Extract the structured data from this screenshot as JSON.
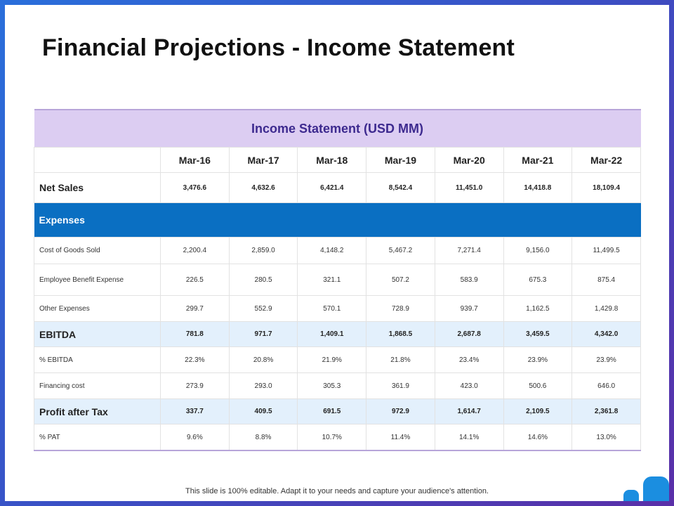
{
  "title": "Financial Projections - Income Statement",
  "table": {
    "caption": "Income Statement (USD MM)",
    "columns": [
      "Mar-16",
      "Mar-17",
      "Mar-18",
      "Mar-19",
      "Mar-20",
      "Mar-21",
      "Mar-22"
    ],
    "net_sales": {
      "label": "Net Sales",
      "values": [
        "3,476.6",
        "4,632.6",
        "6,421.4",
        "8,542.4",
        "11,451.0",
        "14,418.8",
        "18,109.4"
      ]
    },
    "expenses_label": "Expenses",
    "cogs": {
      "label": "Cost of Goods Sold",
      "values": [
        "2,200.4",
        "2,859.0",
        "4,148.2",
        "5,467.2",
        "7,271.4",
        "9,156.0",
        "11,499.5"
      ]
    },
    "employee": {
      "label": "Employee Benefit Expense",
      "values": [
        "226.5",
        "280.5",
        "321.1",
        "507.2",
        "583.9",
        "675.3",
        "875.4"
      ]
    },
    "other": {
      "label": "Other Expenses",
      "values": [
        "299.7",
        "552.9",
        "570.1",
        "728.9",
        "939.7",
        "1,162.5",
        "1,429.8"
      ]
    },
    "ebitda": {
      "label": "EBITDA",
      "values": [
        "781.8",
        "971.7",
        "1,409.1",
        "1,868.5",
        "2,687.8",
        "3,459.5",
        "4,342.0"
      ]
    },
    "pct_ebitda": {
      "label": "% EBITDA",
      "values": [
        "22.3%",
        "20.8%",
        "21.9%",
        "21.8%",
        "23.4%",
        "23.9%",
        "23.9%"
      ]
    },
    "financing": {
      "label": "Financing cost",
      "values": [
        "273.9",
        "293.0",
        "305.3",
        "361.9",
        "423.0",
        "500.6",
        "646.0"
      ]
    },
    "pat": {
      "label": "Profit after Tax",
      "values": [
        "337.7",
        "409.5",
        "691.5",
        "972.9",
        "1,614.7",
        "2,109.5",
        "2,361.8"
      ]
    },
    "pct_pat": {
      "label": "% PAT",
      "values": [
        "9.6%",
        "8.8%",
        "10.7%",
        "11.4%",
        "14.1%",
        "14.6%",
        "13.0%"
      ]
    }
  },
  "footer": "This slide is 100% editable. Adapt it to your needs and capture your audience's attention.",
  "colors": {
    "accent_blue": "#0a6fc2",
    "header_purple": "#dccdf2",
    "highlight_row": "#e3f0fc"
  }
}
